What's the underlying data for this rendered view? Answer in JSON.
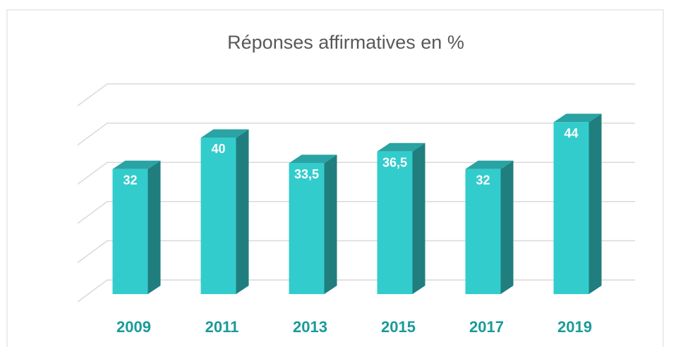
{
  "chart_data": {
    "type": "bar3d",
    "title": "Réponses affirmatives en %",
    "categories": [
      "2009",
      "2011",
      "2013",
      "2015",
      "2017",
      "2019"
    ],
    "values": [
      32,
      40,
      33.5,
      36.5,
      32,
      44
    ],
    "value_labels": [
      "32",
      "40",
      "33,5",
      "36,5",
      "32",
      "44"
    ],
    "color": "#33cccc",
    "ylim": [
      0,
      50
    ],
    "yticks": [
      0,
      10,
      20,
      30,
      40,
      50
    ],
    "grid": true
  }
}
